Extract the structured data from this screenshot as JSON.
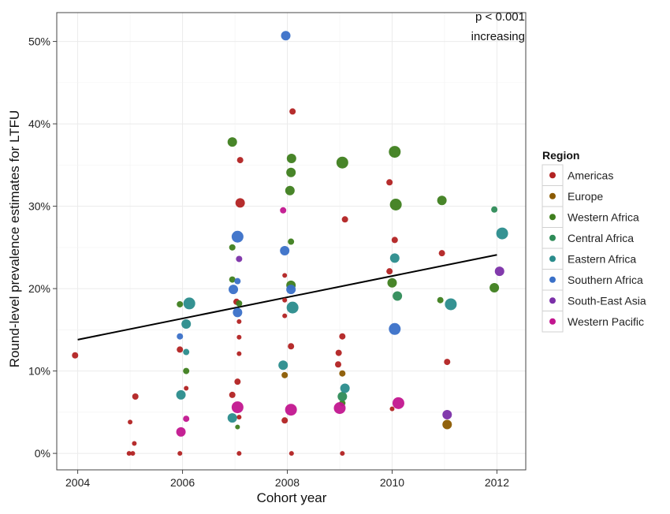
{
  "chart_data": {
    "type": "scatter",
    "title": "",
    "xlabel": "Cohort year",
    "ylabel": "Round-level prevalence estimates for LTFU",
    "xlim": [
      2003.6,
      2012.55
    ],
    "ylim": [
      -2.0,
      53.5
    ],
    "x_ticks": [
      2004,
      2006,
      2008,
      2010,
      2012
    ],
    "x_tick_labels": [
      "2004",
      "2006",
      "2008",
      "2010",
      "2012"
    ],
    "y_ticks": [
      0,
      10,
      20,
      30,
      40,
      50
    ],
    "y_tick_labels": [
      "0%",
      "10%",
      "20%",
      "30%",
      "40%",
      "50%"
    ],
    "grid": true,
    "annotation": [
      "p < 0.001",
      "increasing"
    ],
    "annotation_position": "top-right",
    "legend": {
      "title": "Region",
      "position": "right"
    },
    "trend_line": {
      "x": [
        2004,
        2012
      ],
      "y": [
        13.8,
        24.1
      ]
    },
    "series": [
      {
        "name": "Americas",
        "color": "#B22222",
        "points": [
          {
            "x": 2003.95,
            "y": 11.9,
            "size": 2
          },
          {
            "x": 2005.0,
            "y": 3.8,
            "size": 1
          },
          {
            "x": 2005.1,
            "y": 6.9,
            "size": 2
          },
          {
            "x": 2005.08,
            "y": 1.2,
            "size": 1
          },
          {
            "x": 2005.05,
            "y": 0.0,
            "size": 1
          },
          {
            "x": 2004.98,
            "y": 0.0,
            "size": 1
          },
          {
            "x": 2005.95,
            "y": 12.6,
            "size": 2
          },
          {
            "x": 2005.95,
            "y": 0.0,
            "size": 1
          },
          {
            "x": 2006.07,
            "y": 7.9,
            "size": 1
          },
          {
            "x": 2007.1,
            "y": 35.6,
            "size": 2
          },
          {
            "x": 2007.1,
            "y": 30.4,
            "size": 3
          },
          {
            "x": 2007.03,
            "y": 18.4,
            "size": 2
          },
          {
            "x": 2007.08,
            "y": 16.0,
            "size": 1
          },
          {
            "x": 2007.08,
            "y": 14.1,
            "size": 1
          },
          {
            "x": 2007.08,
            "y": 12.1,
            "size": 1
          },
          {
            "x": 2007.05,
            "y": 8.7,
            "size": 2
          },
          {
            "x": 2006.95,
            "y": 7.1,
            "size": 2
          },
          {
            "x": 2007.08,
            "y": 4.4,
            "size": 1
          },
          {
            "x": 2007.08,
            "y": 0.0,
            "size": 1
          },
          {
            "x": 2008.1,
            "y": 41.5,
            "size": 2
          },
          {
            "x": 2007.95,
            "y": 21.6,
            "size": 1
          },
          {
            "x": 2007.95,
            "y": 18.6,
            "size": 1
          },
          {
            "x": 2007.95,
            "y": 16.7,
            "size": 1
          },
          {
            "x": 2008.07,
            "y": 13.0,
            "size": 2
          },
          {
            "x": 2007.95,
            "y": 4.0,
            "size": 2
          },
          {
            "x": 2008.08,
            "y": 0.0,
            "size": 1
          },
          {
            "x": 2009.1,
            "y": 28.4,
            "size": 2
          },
          {
            "x": 2009.05,
            "y": 14.2,
            "size": 2
          },
          {
            "x": 2008.98,
            "y": 12.2,
            "size": 2
          },
          {
            "x": 2008.97,
            "y": 10.8,
            "size": 2
          },
          {
            "x": 2009.05,
            "y": 0.0,
            "size": 1
          },
          {
            "x": 2009.95,
            "y": 32.9,
            "size": 2
          },
          {
            "x": 2010.05,
            "y": 25.9,
            "size": 2
          },
          {
            "x": 2009.95,
            "y": 22.1,
            "size": 2
          },
          {
            "x": 2010.0,
            "y": 5.4,
            "size": 1
          },
          {
            "x": 2010.95,
            "y": 24.3,
            "size": 2
          },
          {
            "x": 2011.05,
            "y": 11.1,
            "size": 2
          }
        ]
      },
      {
        "name": "Europe",
        "color": "#8B5A00",
        "points": [
          {
            "x": 2007.95,
            "y": 9.5,
            "size": 2
          },
          {
            "x": 2009.05,
            "y": 9.7,
            "size": 2
          },
          {
            "x": 2011.05,
            "y": 3.5,
            "size": 3
          }
        ]
      },
      {
        "name": "Western Africa",
        "color": "#3E7E1E",
        "points": [
          {
            "x": 2005.95,
            "y": 18.1,
            "size": 2
          },
          {
            "x": 2006.07,
            "y": 10.0,
            "size": 2
          },
          {
            "x": 2006.95,
            "y": 37.8,
            "size": 3
          },
          {
            "x": 2006.95,
            "y": 25.0,
            "size": 2
          },
          {
            "x": 2006.95,
            "y": 21.1,
            "size": 2
          },
          {
            "x": 2007.08,
            "y": 18.2,
            "size": 2
          },
          {
            "x": 2007.05,
            "y": 3.2,
            "size": 1
          },
          {
            "x": 2008.08,
            "y": 35.8,
            "size": 3
          },
          {
            "x": 2008.07,
            "y": 34.1,
            "size": 3
          },
          {
            "x": 2008.05,
            "y": 31.9,
            "size": 3
          },
          {
            "x": 2008.07,
            "y": 25.7,
            "size": 2
          },
          {
            "x": 2008.07,
            "y": 20.4,
            "size": 3
          },
          {
            "x": 2009.05,
            "y": 35.3,
            "size": 4
          },
          {
            "x": 2009.05,
            "y": 6.1,
            "size": 2
          },
          {
            "x": 2010.05,
            "y": 36.6,
            "size": 4
          },
          {
            "x": 2010.07,
            "y": 30.2,
            "size": 4
          },
          {
            "x": 2010.0,
            "y": 20.7,
            "size": 3
          },
          {
            "x": 2010.95,
            "y": 30.7,
            "size": 3
          },
          {
            "x": 2010.92,
            "y": 18.6,
            "size": 2
          },
          {
            "x": 2011.95,
            "y": 20.1,
            "size": 3
          }
        ]
      },
      {
        "name": "Central Africa",
        "color": "#2E8B57",
        "points": [
          {
            "x": 2009.05,
            "y": 6.9,
            "size": 3
          },
          {
            "x": 2010.1,
            "y": 19.1,
            "size": 3
          },
          {
            "x": 2011.95,
            "y": 29.6,
            "size": 2
          }
        ]
      },
      {
        "name": "Eastern Africa",
        "color": "#2A8C8C",
        "points": [
          {
            "x": 2006.13,
            "y": 18.2,
            "size": 4
          },
          {
            "x": 2006.07,
            "y": 15.7,
            "size": 3
          },
          {
            "x": 2006.07,
            "y": 12.3,
            "size": 2
          },
          {
            "x": 2005.97,
            "y": 7.1,
            "size": 3
          },
          {
            "x": 2006.95,
            "y": 4.3,
            "size": 3
          },
          {
            "x": 2008.1,
            "y": 17.7,
            "size": 4
          },
          {
            "x": 2007.92,
            "y": 10.7,
            "size": 3
          },
          {
            "x": 2009.1,
            "y": 7.9,
            "size": 3
          },
          {
            "x": 2010.05,
            "y": 23.7,
            "size": 3
          },
          {
            "x": 2011.12,
            "y": 18.1,
            "size": 4
          },
          {
            "x": 2012.1,
            "y": 26.7,
            "size": 4
          }
        ]
      },
      {
        "name": "Southern Africa",
        "color": "#3A70C8",
        "points": [
          {
            "x": 2007.97,
            "y": 50.7,
            "size": 3
          },
          {
            "x": 2007.05,
            "y": 26.3,
            "size": 4
          },
          {
            "x": 2007.05,
            "y": 20.9,
            "size": 2
          },
          {
            "x": 2006.97,
            "y": 19.9,
            "size": 3
          },
          {
            "x": 2007.05,
            "y": 17.1,
            "size": 3
          },
          {
            "x": 2007.95,
            "y": 24.6,
            "size": 3
          },
          {
            "x": 2008.07,
            "y": 19.9,
            "size": 3
          },
          {
            "x": 2005.95,
            "y": 14.2,
            "size": 2
          },
          {
            "x": 2010.05,
            "y": 15.1,
            "size": 4
          }
        ]
      },
      {
        "name": "South-East Asia",
        "color": "#7B2FA8",
        "points": [
          {
            "x": 2007.08,
            "y": 23.6,
            "size": 2
          },
          {
            "x": 2011.05,
            "y": 4.7,
            "size": 3
          },
          {
            "x": 2012.05,
            "y": 22.1,
            "size": 3
          }
        ]
      },
      {
        "name": "Western Pacific",
        "color": "#C2168F",
        "points": [
          {
            "x": 2007.92,
            "y": 29.5,
            "size": 2
          },
          {
            "x": 2006.07,
            "y": 4.2,
            "size": 2
          },
          {
            "x": 2005.97,
            "y": 2.6,
            "size": 3
          },
          {
            "x": 2007.05,
            "y": 5.6,
            "size": 4
          },
          {
            "x": 2008.07,
            "y": 5.3,
            "size": 4
          },
          {
            "x": 2009.0,
            "y": 5.5,
            "size": 4
          },
          {
            "x": 2010.12,
            "y": 6.1,
            "size": 4
          }
        ]
      }
    ]
  }
}
